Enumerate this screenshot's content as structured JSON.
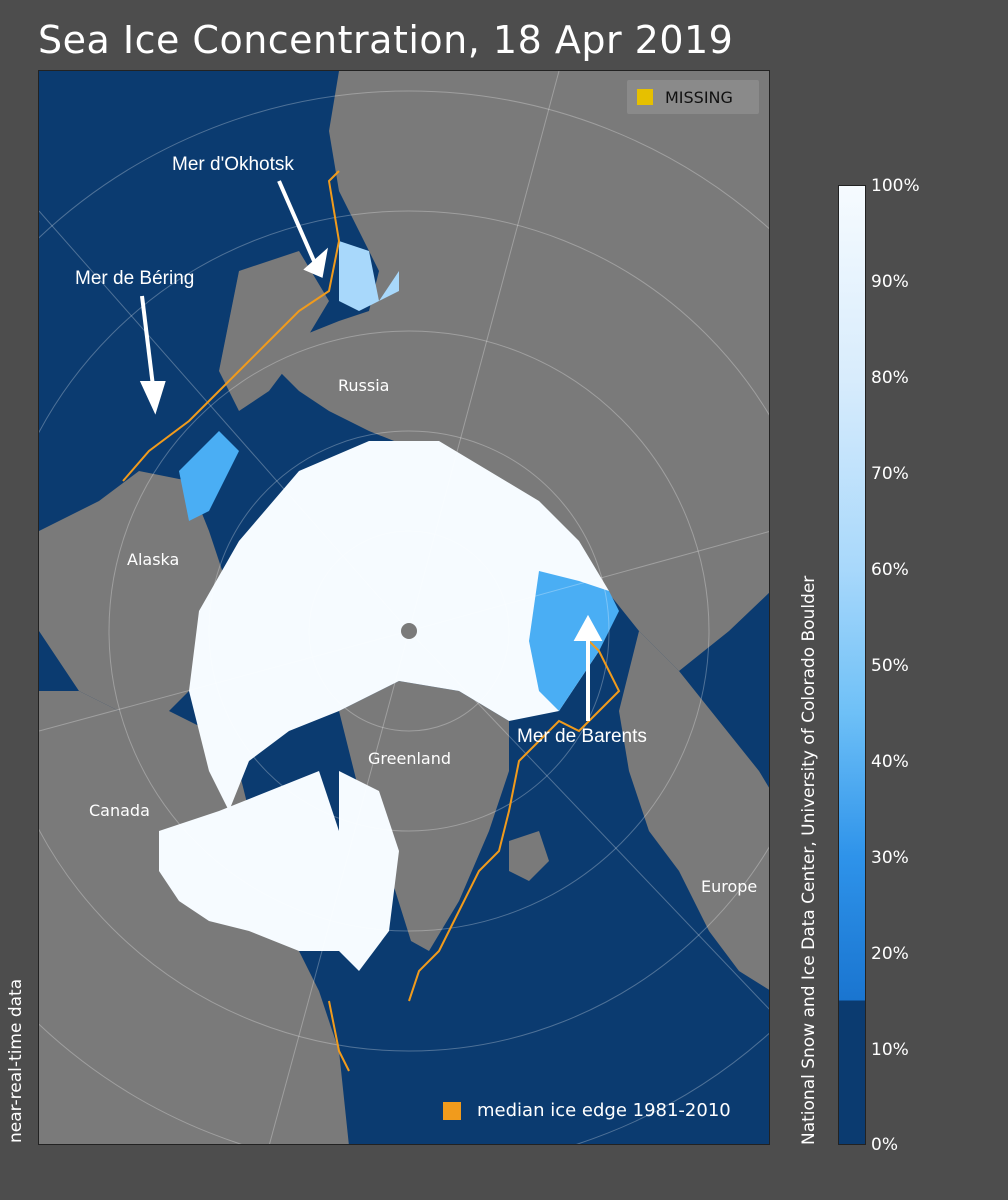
{
  "title": "Sea Ice Concentration, 18 Apr 2019",
  "legend": {
    "missing_label": "MISSING",
    "missing_color": "#e6c000",
    "median_edge_label": "median ice edge 1981-2010",
    "median_edge_color": "#f19b1c"
  },
  "regions": {
    "russia": "Russia",
    "alaska": "Alaska",
    "canada": "Canada",
    "greenland": "Greenland",
    "europe": "Europe"
  },
  "seas": {
    "okhotsk": "Mer d'Okhotsk",
    "bering": "Mer de Béring",
    "barents": "Mer de Barents"
  },
  "side_left": "near-real-time data",
  "side_right": "National Snow and Ice Data Center, University of Colorado Boulder",
  "colorbar": {
    "ticks": [
      "100%",
      "90%",
      "80%",
      "70%",
      "60%",
      "50%",
      "40%",
      "30%",
      "20%",
      "10%",
      "0%"
    ],
    "colors": {
      "open_water": "#0b3b70",
      "low": "#1a75d0",
      "mid": "#4aaef4",
      "high": "#a8d8fb",
      "full": "#f6fbff"
    }
  },
  "colors": {
    "land": "#7a7a7a",
    "ocean": "#0b3b70",
    "background": "#4d4d4d"
  }
}
